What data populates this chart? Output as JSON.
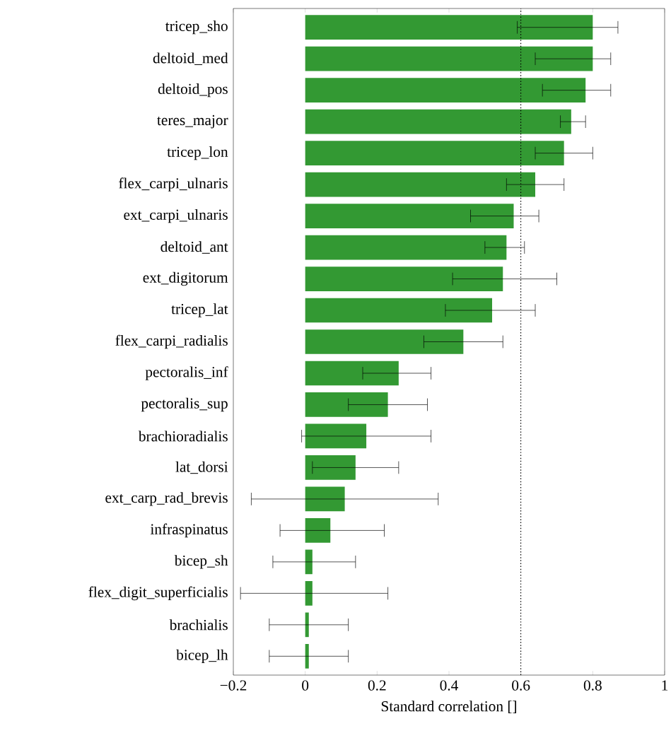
{
  "chart_data": {
    "type": "bar",
    "orientation": "horizontal",
    "xlabel": "Standard correlation []",
    "categories": [
      "tricep_sho",
      "deltoid_med",
      "deltoid_pos",
      "teres_major",
      "tricep_lon",
      "flex_carpi_ulnaris",
      "ext_carpi_ulnaris",
      "deltoid_ant",
      "ext_digitorum",
      "tricep_lat",
      "flex_carpi_radialis",
      "pectoralis_inf",
      "pectoralis_sup",
      "brachioradialis",
      "lat_dorsi",
      "ext_carp_rad_brevis",
      "infraspinatus",
      "bicep_sh",
      "flex_digit_superficialis",
      "brachialis",
      "bicep_lh"
    ],
    "values": [
      0.8,
      0.8,
      0.78,
      0.74,
      0.72,
      0.64,
      0.58,
      0.56,
      0.55,
      0.52,
      0.44,
      0.26,
      0.23,
      0.17,
      0.14,
      0.11,
      0.07,
      0.02,
      0.02,
      0.01,
      0.01
    ],
    "errors": [
      [
        0.59,
        0.87
      ],
      [
        0.64,
        0.85
      ],
      [
        0.66,
        0.85
      ],
      [
        0.71,
        0.78
      ],
      [
        0.64,
        0.8
      ],
      [
        0.56,
        0.72
      ],
      [
        0.46,
        0.65
      ],
      [
        0.5,
        0.61
      ],
      [
        0.41,
        0.7
      ],
      [
        0.39,
        0.64
      ],
      [
        0.33,
        0.55
      ],
      [
        0.16,
        0.35
      ],
      [
        0.12,
        0.34
      ],
      [
        -0.01,
        0.35
      ],
      [
        0.02,
        0.26
      ],
      [
        -0.15,
        0.37
      ],
      [
        -0.07,
        0.22
      ],
      [
        -0.09,
        0.14
      ],
      [
        -0.18,
        0.23
      ],
      [
        -0.1,
        0.12
      ],
      [
        -0.1,
        0.12
      ]
    ],
    "color": "#339933",
    "xlim": [
      -0.2,
      1
    ],
    "xticks": [
      {
        "value": -0.2,
        "label": "−0.2"
      },
      0,
      0.2,
      0.4,
      0.6,
      0.8,
      1
    ],
    "ref_lines": [
      {
        "axis": "x",
        "value": 0.6,
        "line_style": "dotted"
      }
    ]
  }
}
